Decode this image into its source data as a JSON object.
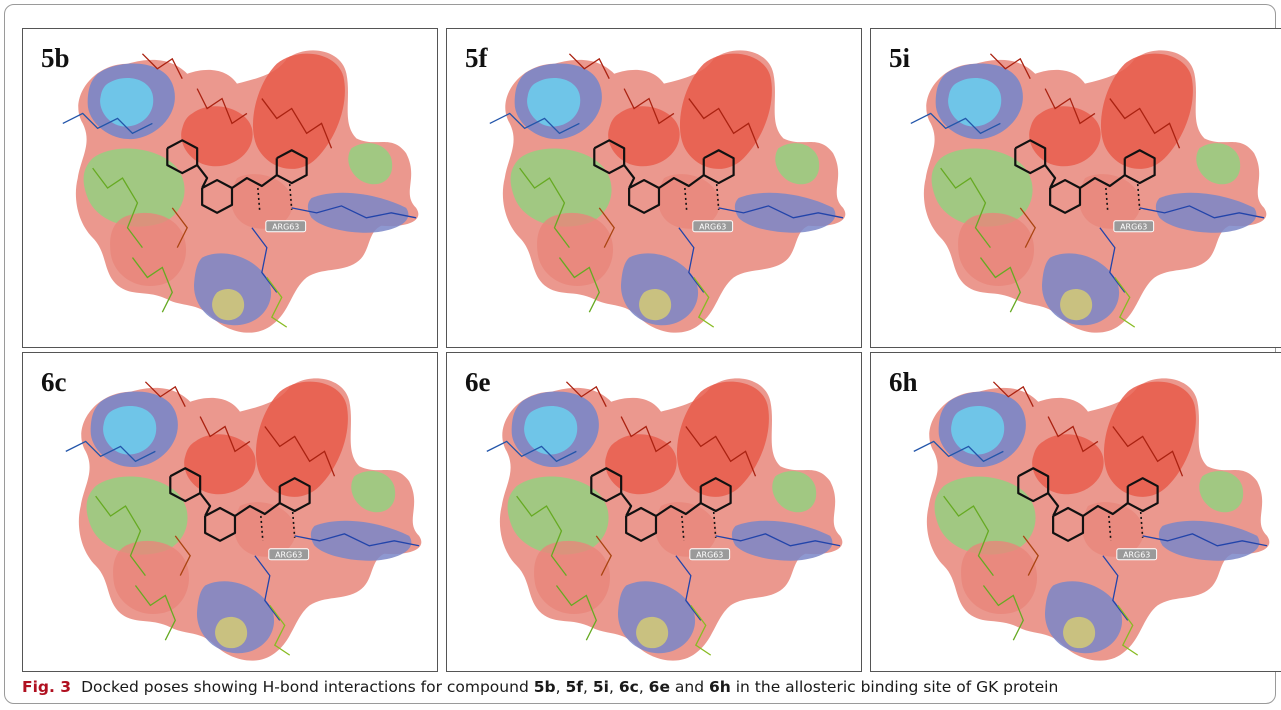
{
  "panels": [
    {
      "label": "5b",
      "residue_label": "ARG63"
    },
    {
      "label": "5f",
      "residue_label": "ARG63"
    },
    {
      "label": "5i",
      "residue_label": "ARG63"
    },
    {
      "label": "6c",
      "residue_label": "ARG63"
    },
    {
      "label": "6e",
      "residue_label": "ARG63"
    },
    {
      "label": "6h",
      "residue_label": "ARG63"
    }
  ],
  "caption": {
    "fig_label": "Fig. 3",
    "text_1": "Docked poses showing H-bond interactions for compound ",
    "c1": "5b",
    "sep1": ", ",
    "c2": "5f",
    "sep2": ", ",
    "c3": "5i",
    "sep3": ", ",
    "c4": "6c",
    "sep4": ", ",
    "c5": "6e",
    "sep5": " and ",
    "c6": "6h",
    "text_2": " in the allosteric binding site of GK protein"
  },
  "colors": {
    "surface_red": "#e85a4a",
    "surface_salmon": "#e8867a",
    "surface_green": "#8fd47f",
    "surface_blue": "#7a86c8",
    "surface_cyan": "#6ec8ea",
    "surface_yellow": "#d8d070",
    "ligand": "#111111",
    "caption_fig": "#b01020"
  }
}
